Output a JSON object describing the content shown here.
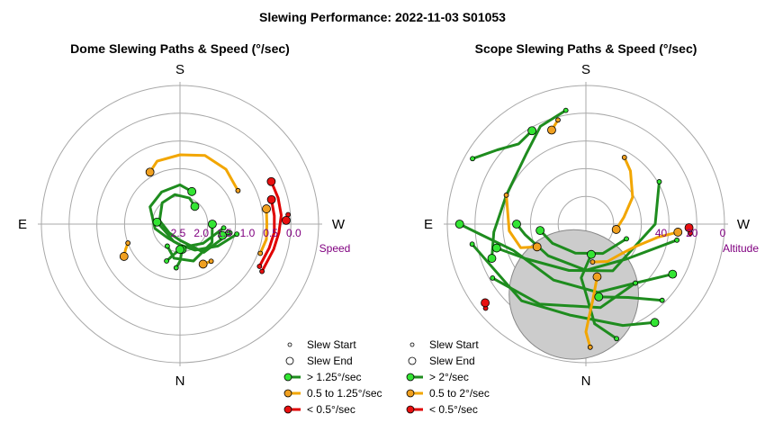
{
  "figure": {
    "title": "Slewing Performance: 2022-11-03 S01053"
  },
  "colors": {
    "fast": "#1e8c1e",
    "fast_marker": "#33e533",
    "medium": "#f2a600",
    "medium_marker": "#f0a020",
    "slow": "#e00000",
    "slow_marker": "#e81010",
    "grid": "#a8a8a8",
    "axis_label": "#800080",
    "obscured": "#cccccc"
  },
  "chart_data": [
    {
      "type": "scatter",
      "subtype": "polar-paths",
      "title": "Dome Slewing Paths & Speed (°/sec)",
      "directions": {
        "top": "S",
        "right": "W",
        "bottom": "N",
        "left": "E"
      },
      "radial_axis": {
        "label": "Speed",
        "tick_labels": [
          "2.5",
          "2.0",
          "1.5",
          "1.0",
          "0.5",
          "0.0"
        ],
        "tick_values": [
          2.5,
          2.0,
          1.5,
          1.0,
          0.5,
          0.0
        ],
        "range": [
          2.5,
          0.0
        ]
      },
      "legend": {
        "placement": "bottom-right",
        "entries": [
          "Slew Start",
          "Slew End",
          "> 1.25°/sec",
          "0.5 to 1.25°/sec",
          "< 0.5°/sec"
        ]
      },
      "series": [
        {
          "category": "slow",
          "points": [
            [
              120,
              0.45
            ],
            [
              105,
              0.4
            ],
            [
              95,
              0.35
            ],
            [
              85,
              0.3
            ],
            [
              75,
              0.3
            ],
            [
              65,
              0.32
            ]
          ]
        },
        {
          "category": "slow",
          "points": [
            [
              118,
              0.55
            ],
            [
              105,
              0.5
            ],
            [
              95,
              0.45
            ],
            [
              85,
              0.45
            ],
            [
              75,
              0.45
            ]
          ]
        },
        {
          "category": "slow",
          "points": [
            [
              85,
              0.15
            ],
            [
              88,
              0.2
            ]
          ]
        },
        {
          "category": "medium",
          "points": [
            [
              110,
              0.65
            ],
            [
              100,
              0.6
            ],
            [
              90,
              0.62
            ],
            [
              80,
              0.6
            ]
          ]
        },
        {
          "category": "medium",
          "points": [
            [
              60,
              1.05
            ],
            [
              40,
              0.95
            ],
            [
              20,
              0.92
            ],
            [
              0,
              1.0
            ],
            [
              -20,
              1.05
            ],
            [
              -30,
              1.2
            ]
          ]
        },
        {
          "category": "medium",
          "points": [
            [
              140,
              1.45
            ],
            [
              150,
              1.5
            ]
          ]
        },
        {
          "category": "medium",
          "points": [
            [
              -110,
              1.3
            ],
            [
              -115,
              1.2
            ],
            [
              -120,
              1.1
            ]
          ]
        },
        {
          "category": "fast",
          "points": [
            [
              100,
              1.25
            ],
            [
              120,
              1.55
            ],
            [
              150,
              1.85
            ],
            [
              180,
              2.05
            ],
            [
              220,
              2.1
            ],
            [
              260,
              1.95
            ],
            [
              300,
              1.75
            ],
            [
              330,
              1.7
            ],
            [
              360,
              1.65
            ],
            [
              380,
              1.75
            ]
          ]
        },
        {
          "category": "fast",
          "points": [
            [
              100,
              1.4
            ],
            [
              140,
              1.7
            ],
            [
              180,
              2.15
            ],
            [
              230,
              2.2
            ],
            [
              280,
              2.05
            ],
            [
              320,
              1.9
            ],
            [
              350,
              1.85
            ],
            [
              380,
              1.9
            ],
            [
              400,
              2.0
            ]
          ]
        },
        {
          "category": "fast",
          "points": [
            [
              95,
              1.55
            ],
            [
              130,
              1.85
            ],
            [
              170,
              2.0
            ],
            [
              200,
              2.1
            ],
            [
              240,
              2.15
            ],
            [
              275,
              2.0
            ]
          ]
        },
        {
          "category": "fast",
          "points": [
            [
              -150,
              1.95
            ],
            [
              -170,
              1.75
            ],
            [
              -200,
              1.65
            ],
            [
              -240,
              1.7
            ],
            [
              -270,
              1.8
            ]
          ]
        },
        {
          "category": "fast",
          "points": [
            [
              100,
              1.45
            ],
            [
              105,
              1.55
            ]
          ]
        },
        {
          "category": "fast",
          "points": [
            [
              -175,
              1.55
            ],
            [
              -180,
              1.7
            ],
            [
              -185,
              1.95
            ]
          ]
        },
        {
          "category": "fast",
          "points": [
            [
              -160,
              1.65
            ],
            [
              -170,
              1.85
            ],
            [
              -180,
              1.95
            ]
          ]
        }
      ]
    },
    {
      "type": "scatter",
      "subtype": "polar-paths",
      "title": "Scope Slewing Paths & Speed (°/sec)",
      "directions": {
        "top": "S",
        "right": "W",
        "bottom": "N",
        "left": "E"
      },
      "radial_axis": {
        "label": "Altitude",
        "tick_labels": [
          "40",
          "20",
          "0"
        ],
        "tick_values": [
          40,
          20,
          0
        ],
        "range": [
          90,
          0
        ]
      },
      "obscured_region": {
        "azimuth": -10,
        "altitude": 45,
        "radius_altitude": 14
      },
      "legend": {
        "placement": "bottom-left",
        "entries": [
          "Slew Start",
          "Slew End",
          "> 2°/sec",
          "0.5 to 2°/sec",
          "< 0.5°/sec"
        ]
      },
      "series": [
        {
          "category": "fast",
          "points": [
            [
              165,
              13
            ],
            [
              175,
              25
            ],
            [
              180,
              45
            ],
            [
              185,
              55
            ],
            [
              170,
              70
            ]
          ]
        },
        {
          "category": "fast",
          "points": [
            [
              140,
              40
            ],
            [
              170,
              45
            ],
            [
              210,
              48
            ],
            [
              250,
              40
            ],
            [
              265,
              20
            ],
            [
              270,
              8
            ]
          ]
        },
        {
          "category": "fast",
          "points": [
            [
              100,
              30
            ],
            [
              130,
              55
            ],
            [
              180,
              60
            ],
            [
              230,
              58
            ],
            [
              260,
              50
            ],
            [
              270,
              45
            ]
          ]
        },
        {
          "category": "fast",
          "points": [
            [
              60,
              35
            ],
            [
              90,
              45
            ],
            [
              150,
              55
            ],
            [
              200,
              58
            ],
            [
              240,
              45
            ],
            [
              255,
              30
            ]
          ]
        },
        {
          "category": "fast",
          "points": [
            [
              -120,
              20
            ],
            [
              -150,
              30
            ],
            [
              -190,
              35
            ],
            [
              -220,
              40
            ],
            [
              -240,
              25
            ]
          ]
        },
        {
          "category": "fast",
          "points": [
            [
              -100,
              15
            ],
            [
              -140,
              25
            ],
            [
              -170,
              30
            ],
            [
              -200,
              20
            ],
            [
              -215,
              12
            ]
          ]
        },
        {
          "category": "fast",
          "points": [
            [
              -60,
              5
            ],
            [
              -50,
              15
            ],
            [
              -40,
              22
            ],
            [
              -30,
              20
            ]
          ]
        },
        {
          "category": "fast",
          "points": [
            [
              110,
              62
            ],
            [
              150,
              68
            ],
            [
              200,
              70
            ],
            [
              240,
              65
            ],
            [
              262,
              60
            ]
          ]
        },
        {
          "category": "fast",
          "points": [
            [
              135,
              20
            ],
            [
              150,
              35
            ],
            [
              170,
              42
            ]
          ]
        },
        {
          "category": "fast",
          "points": [
            [
              -10,
              15
            ],
            [
              -25,
              20
            ],
            [
              -40,
              30
            ],
            [
              -70,
              35
            ],
            [
              -95,
              30
            ],
            [
              -110,
              25
            ]
          ]
        },
        {
          "category": "medium",
          "points": [
            [
              178,
              10
            ],
            [
              180,
              20
            ],
            [
              178,
              30
            ],
            [
              175,
              40
            ],
            [
              168,
              55
            ]
          ]
        },
        {
          "category": "medium",
          "points": [
            [
              170,
              65
            ],
            [
              150,
              62
            ],
            [
              130,
              60
            ],
            [
              115,
              55
            ],
            [
              100,
              42
            ],
            [
              95,
              30
            ]
          ]
        },
        {
          "category": "medium",
          "points": [
            [
              -70,
              35
            ],
            [
              -95,
              40
            ],
            [
              -110,
              45
            ],
            [
              -115,
              55
            ]
          ]
        },
        {
          "category": "medium",
          "points": [
            [
              30,
              40
            ],
            [
              40,
              45
            ],
            [
              60,
              55
            ],
            [
              80,
              65
            ],
            [
              100,
              70
            ]
          ]
        },
        {
          "category": "medium",
          "points": [
            [
              -15,
              20
            ],
            [
              -20,
              25
            ]
          ]
        },
        {
          "category": "slow",
          "points": [
            [
              95,
              22
            ],
            [
              92,
              23
            ]
          ]
        },
        {
          "category": "slow",
          "points": [
            [
              -130,
              5
            ],
            [
              -128,
              7
            ]
          ]
        }
      ]
    }
  ]
}
